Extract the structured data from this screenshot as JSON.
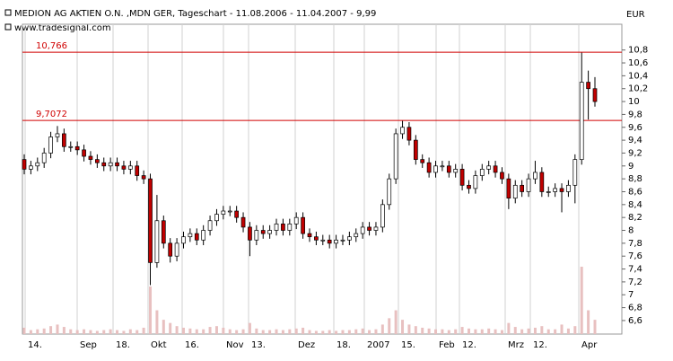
{
  "chart_data": {
    "type": "candlestick",
    "title": "MEDION AG AKTIEN O.N. ,MDN GER, Tageschart - 11.08.2006 - 11.04.2007 - 9,99",
    "subtitle": "www.tradesignal.com",
    "currency": "EUR",
    "x_labels": [
      "14.",
      "Sep",
      "18.",
      "Okt",
      "16.",
      "Nov",
      "13.",
      "Dez",
      "18.",
      "2007",
      "15.",
      "Feb",
      "12.",
      "Mrz",
      "12.",
      "Apr"
    ],
    "open": [
      9.1,
      8.95,
      9.0,
      9.05,
      9.2,
      9.45,
      9.5,
      9.3,
      9.3,
      9.25,
      9.15,
      9.1,
      9.05,
      9.0,
      9.05,
      9.0,
      8.95,
      9.0,
      8.85,
      8.8,
      7.5,
      8.15,
      7.8,
      7.6,
      7.8,
      7.9,
      7.95,
      7.85,
      8.0,
      8.15,
      8.25,
      8.3,
      8.3,
      8.2,
      8.05,
      7.85,
      8.0,
      7.95,
      8.0,
      8.1,
      8.0,
      8.1,
      8.2,
      7.95,
      7.9,
      7.85,
      7.85,
      7.8,
      7.85,
      7.85,
      7.9,
      7.95,
      8.05,
      8.0,
      8.05,
      8.4,
      8.8,
      9.5,
      9.6,
      9.4,
      9.1,
      9.05,
      8.9,
      9.0,
      9.0,
      8.9,
      8.95,
      8.7,
      8.65,
      8.85,
      8.95,
      9.0,
      8.9,
      8.8,
      8.5,
      8.7,
      8.6,
      8.8,
      8.9,
      8.6,
      8.6,
      8.65,
      8.6,
      8.7,
      9.1,
      10.3,
      10.2
    ],
    "high": [
      9.18,
      9.08,
      9.13,
      9.28,
      9.53,
      9.62,
      9.58,
      9.38,
      9.38,
      9.33,
      9.23,
      9.18,
      9.13,
      9.13,
      9.13,
      9.08,
      9.08,
      9.08,
      8.93,
      8.88,
      8.55,
      8.23,
      7.88,
      7.88,
      7.98,
      8.03,
      8.03,
      8.08,
      8.23,
      8.33,
      8.38,
      8.38,
      8.38,
      8.28,
      8.13,
      8.08,
      8.08,
      8.08,
      8.18,
      8.18,
      8.18,
      8.28,
      8.28,
      8.03,
      7.98,
      7.93,
      7.93,
      7.93,
      7.93,
      7.98,
      8.03,
      8.13,
      8.13,
      8.13,
      8.48,
      8.88,
      9.58,
      9.7,
      9.68,
      9.48,
      9.18,
      9.13,
      9.08,
      9.08,
      9.08,
      9.03,
      9.03,
      8.78,
      8.93,
      9.03,
      9.08,
      9.08,
      8.98,
      8.88,
      8.78,
      8.78,
      8.88,
      9.08,
      8.98,
      8.68,
      8.73,
      8.73,
      8.78,
      9.18,
      10.76,
      10.48,
      10.38
    ],
    "low": [
      8.87,
      8.87,
      8.92,
      8.97,
      9.12,
      9.37,
      9.22,
      9.22,
      9.17,
      9.07,
      9.02,
      8.97,
      8.92,
      8.92,
      8.92,
      8.87,
      8.87,
      8.77,
      8.72,
      7.15,
      7.42,
      7.72,
      7.5,
      7.52,
      7.72,
      7.82,
      7.77,
      7.77,
      7.92,
      8.07,
      8.17,
      8.22,
      8.12,
      7.97,
      7.6,
      7.77,
      7.87,
      7.87,
      7.92,
      7.92,
      7.92,
      8.02,
      7.87,
      7.82,
      7.77,
      7.77,
      7.72,
      7.72,
      7.77,
      7.77,
      7.82,
      7.87,
      7.92,
      7.92,
      7.97,
      8.32,
      8.72,
      9.42,
      9.32,
      9.02,
      8.97,
      8.82,
      8.82,
      8.92,
      8.82,
      8.82,
      8.62,
      8.57,
      8.57,
      8.77,
      8.87,
      8.82,
      8.72,
      8.33,
      8.42,
      8.52,
      8.52,
      8.72,
      8.52,
      8.52,
      8.52,
      8.28,
      8.52,
      8.42,
      9.02,
      9.72,
      9.92
    ],
    "close": [
      8.95,
      9.0,
      9.05,
      9.2,
      9.45,
      9.5,
      9.3,
      9.3,
      9.25,
      9.15,
      9.1,
      9.05,
      9.0,
      9.05,
      9.0,
      8.95,
      9.0,
      8.85,
      8.8,
      7.5,
      8.15,
      7.8,
      7.6,
      7.8,
      7.9,
      7.95,
      7.85,
      8.0,
      8.15,
      8.25,
      8.3,
      8.3,
      8.2,
      8.05,
      7.85,
      8.0,
      7.95,
      8.0,
      8.1,
      8.0,
      8.1,
      8.2,
      7.95,
      7.9,
      7.85,
      7.85,
      7.8,
      7.85,
      7.85,
      7.9,
      7.95,
      8.05,
      8.0,
      8.05,
      8.4,
      8.8,
      9.5,
      9.6,
      9.4,
      9.1,
      9.05,
      8.9,
      9.0,
      9.0,
      8.9,
      8.95,
      8.7,
      8.65,
      8.85,
      8.95,
      9.0,
      8.9,
      8.8,
      8.5,
      8.7,
      8.6,
      8.8,
      8.9,
      8.6,
      8.6,
      8.65,
      8.6,
      8.7,
      9.1,
      10.3,
      10.2,
      10.0
    ],
    "volume": [
      8,
      5,
      6,
      7,
      10,
      12,
      9,
      6,
      5,
      6,
      5,
      4,
      5,
      6,
      5,
      4,
      6,
      5,
      8,
      60,
      30,
      18,
      14,
      10,
      8,
      7,
      6,
      6,
      9,
      10,
      8,
      6,
      5,
      6,
      14,
      7,
      5,
      5,
      6,
      5,
      6,
      7,
      8,
      5,
      4,
      4,
      5,
      4,
      5,
      5,
      6,
      7,
      5,
      6,
      12,
      20,
      30,
      18,
      12,
      10,
      8,
      7,
      6,
      6,
      5,
      6,
      9,
      7,
      6,
      6,
      7,
      6,
      5,
      14,
      9,
      6,
      7,
      8,
      10,
      6,
      6,
      12,
      7,
      10,
      85,
      30,
      18
    ],
    "up_color": "#ffffff",
    "down_color": "#c00000",
    "volume_color": "#e8c0c0",
    "levels": [
      {
        "value": 10.766,
        "label": "10,766"
      },
      {
        "value": 9.7072,
        "label": "9,7072"
      }
    ],
    "level_color": "#d00000",
    "ylim": [
      6.39,
      11.2
    ],
    "yticks": [
      {
        "value": 6.6,
        "label": "6,6"
      },
      {
        "value": 6.8,
        "label": "6,8"
      },
      7,
      {
        "value": 7.2,
        "label": "7,2"
      },
      {
        "value": 7.4,
        "label": "7,4"
      },
      {
        "value": 7.6,
        "label": "7,6"
      },
      {
        "value": 7.8,
        "label": "7,8"
      },
      8,
      {
        "value": 8.2,
        "label": "8,2"
      },
      {
        "value": 8.4,
        "label": "8,4"
      },
      {
        "value": 8.6,
        "label": "8,6"
      },
      {
        "value": 8.8,
        "label": "8,8"
      },
      9,
      {
        "value": 9.2,
        "label": "9,2"
      },
      {
        "value": 9.4,
        "label": "9,4"
      },
      {
        "value": 9.6,
        "label": "9,6"
      },
      {
        "value": 9.8,
        "label": "9,8"
      },
      10,
      {
        "value": 10.2,
        "label": "10,2"
      },
      {
        "value": 10.4,
        "label": "10,4"
      },
      {
        "value": 10.6,
        "label": "10,6"
      },
      {
        "value": 10.8,
        "label": "10,8"
      }
    ],
    "grid": true
  }
}
